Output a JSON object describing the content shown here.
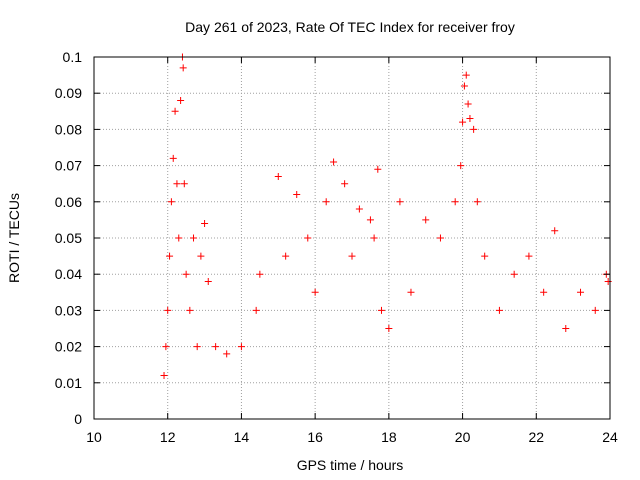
{
  "chart_data": {
    "type": "scatter",
    "title": "Day 261 of 2023, Rate Of TEC Index for receiver froy",
    "xlabel": "GPS time / hours",
    "ylabel": "ROTI / TECUs",
    "xlim": [
      10,
      24
    ],
    "ylim": [
      0,
      0.1
    ],
    "xticks": [
      10,
      12,
      14,
      16,
      18,
      20,
      22,
      24
    ],
    "xtick_labels": [
      "10",
      "12",
      "14",
      "16",
      "18",
      "20",
      "22",
      "24"
    ],
    "yticks": [
      0,
      0.01,
      0.02,
      0.03,
      0.04,
      0.05,
      0.06,
      0.07,
      0.08,
      0.09,
      0.1
    ],
    "ytick_labels": [
      "0",
      "0.01",
      "0.02",
      "0.03",
      "0.04",
      "0.05",
      "0.06",
      "0.07",
      "0.08",
      "0.09",
      "0.1"
    ],
    "grid": true,
    "marker": "+",
    "color": "#ff0000",
    "series": [
      {
        "name": "ROTI",
        "points": [
          [
            11.9,
            0.012
          ],
          [
            11.95,
            0.02
          ],
          [
            12.0,
            0.03
          ],
          [
            12.05,
            0.045
          ],
          [
            12.1,
            0.06
          ],
          [
            12.15,
            0.072
          ],
          [
            12.2,
            0.085
          ],
          [
            12.25,
            0.065
          ],
          [
            12.3,
            0.05
          ],
          [
            12.35,
            0.088
          ],
          [
            12.4,
            0.1
          ],
          [
            12.42,
            0.097
          ],
          [
            12.45,
            0.065
          ],
          [
            12.5,
            0.04
          ],
          [
            12.6,
            0.03
          ],
          [
            12.7,
            0.05
          ],
          [
            12.8,
            0.02
          ],
          [
            12.9,
            0.045
          ],
          [
            13.0,
            0.054
          ],
          [
            13.1,
            0.038
          ],
          [
            13.3,
            0.02
          ],
          [
            13.6,
            0.018
          ],
          [
            14.0,
            0.02
          ],
          [
            14.4,
            0.03
          ],
          [
            14.5,
            0.04
          ],
          [
            15.0,
            0.067
          ],
          [
            15.2,
            0.045
          ],
          [
            15.5,
            0.062
          ],
          [
            15.8,
            0.05
          ],
          [
            16.0,
            0.035
          ],
          [
            16.3,
            0.06
          ],
          [
            16.5,
            0.071
          ],
          [
            16.8,
            0.065
          ],
          [
            17.0,
            0.045
          ],
          [
            17.2,
            0.058
          ],
          [
            17.5,
            0.055
          ],
          [
            17.6,
            0.05
          ],
          [
            17.7,
            0.069
          ],
          [
            17.8,
            0.03
          ],
          [
            18.0,
            0.025
          ],
          [
            18.3,
            0.06
          ],
          [
            18.6,
            0.035
          ],
          [
            19.0,
            0.055
          ],
          [
            19.4,
            0.05
          ],
          [
            19.8,
            0.06
          ],
          [
            19.95,
            0.07
          ],
          [
            20.0,
            0.082
          ],
          [
            20.05,
            0.092
          ],
          [
            20.1,
            0.095
          ],
          [
            20.15,
            0.087
          ],
          [
            20.2,
            0.083
          ],
          [
            20.3,
            0.08
          ],
          [
            20.4,
            0.06
          ],
          [
            20.6,
            0.045
          ],
          [
            21.0,
            0.03
          ],
          [
            21.4,
            0.04
          ],
          [
            21.8,
            0.045
          ],
          [
            22.2,
            0.035
          ],
          [
            22.5,
            0.052
          ],
          [
            22.8,
            0.025
          ],
          [
            23.2,
            0.035
          ],
          [
            23.6,
            0.03
          ],
          [
            23.9,
            0.04
          ],
          [
            23.95,
            0.038
          ]
        ]
      }
    ]
  }
}
